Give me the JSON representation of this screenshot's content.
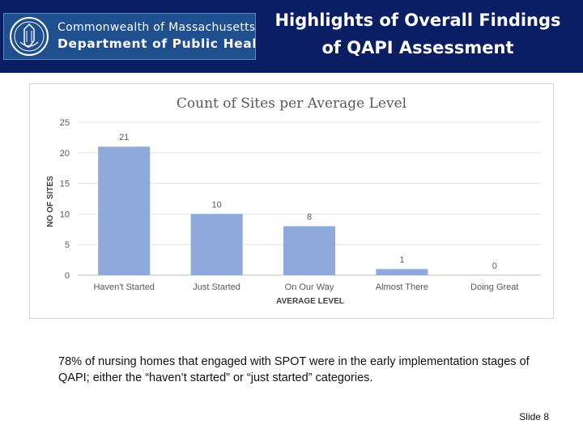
{
  "header": {
    "org_line1": "Commonwealth of Massachusetts",
    "org_line2": "Department of Public Health",
    "title_line1": "Highlights of Overall Findings",
    "title_line2": "of QAPI Assessment",
    "background_color": "#0b1d63"
  },
  "chart_data": {
    "type": "bar",
    "title": "Count of Sites per Average Level",
    "xlabel": "AVERAGE LEVEL",
    "ylabel": "NO OF SITES",
    "categories": [
      "Haven't Started",
      "Just Started",
      "On Our Way",
      "Almost There",
      "Doing Great"
    ],
    "values": [
      21,
      10,
      8,
      1,
      0
    ],
    "yticks": [
      0,
      5,
      10,
      15,
      20,
      25
    ],
    "ylim": [
      0,
      25
    ],
    "grid": true,
    "bar_color": "#8eaadb",
    "data_labels": true
  },
  "summary": "78% of nursing homes that engaged with SPOT were in the early implementation stages of QAPI; either the “haven’t started” or “just started” categories.",
  "slide_number": "Slide 8"
}
